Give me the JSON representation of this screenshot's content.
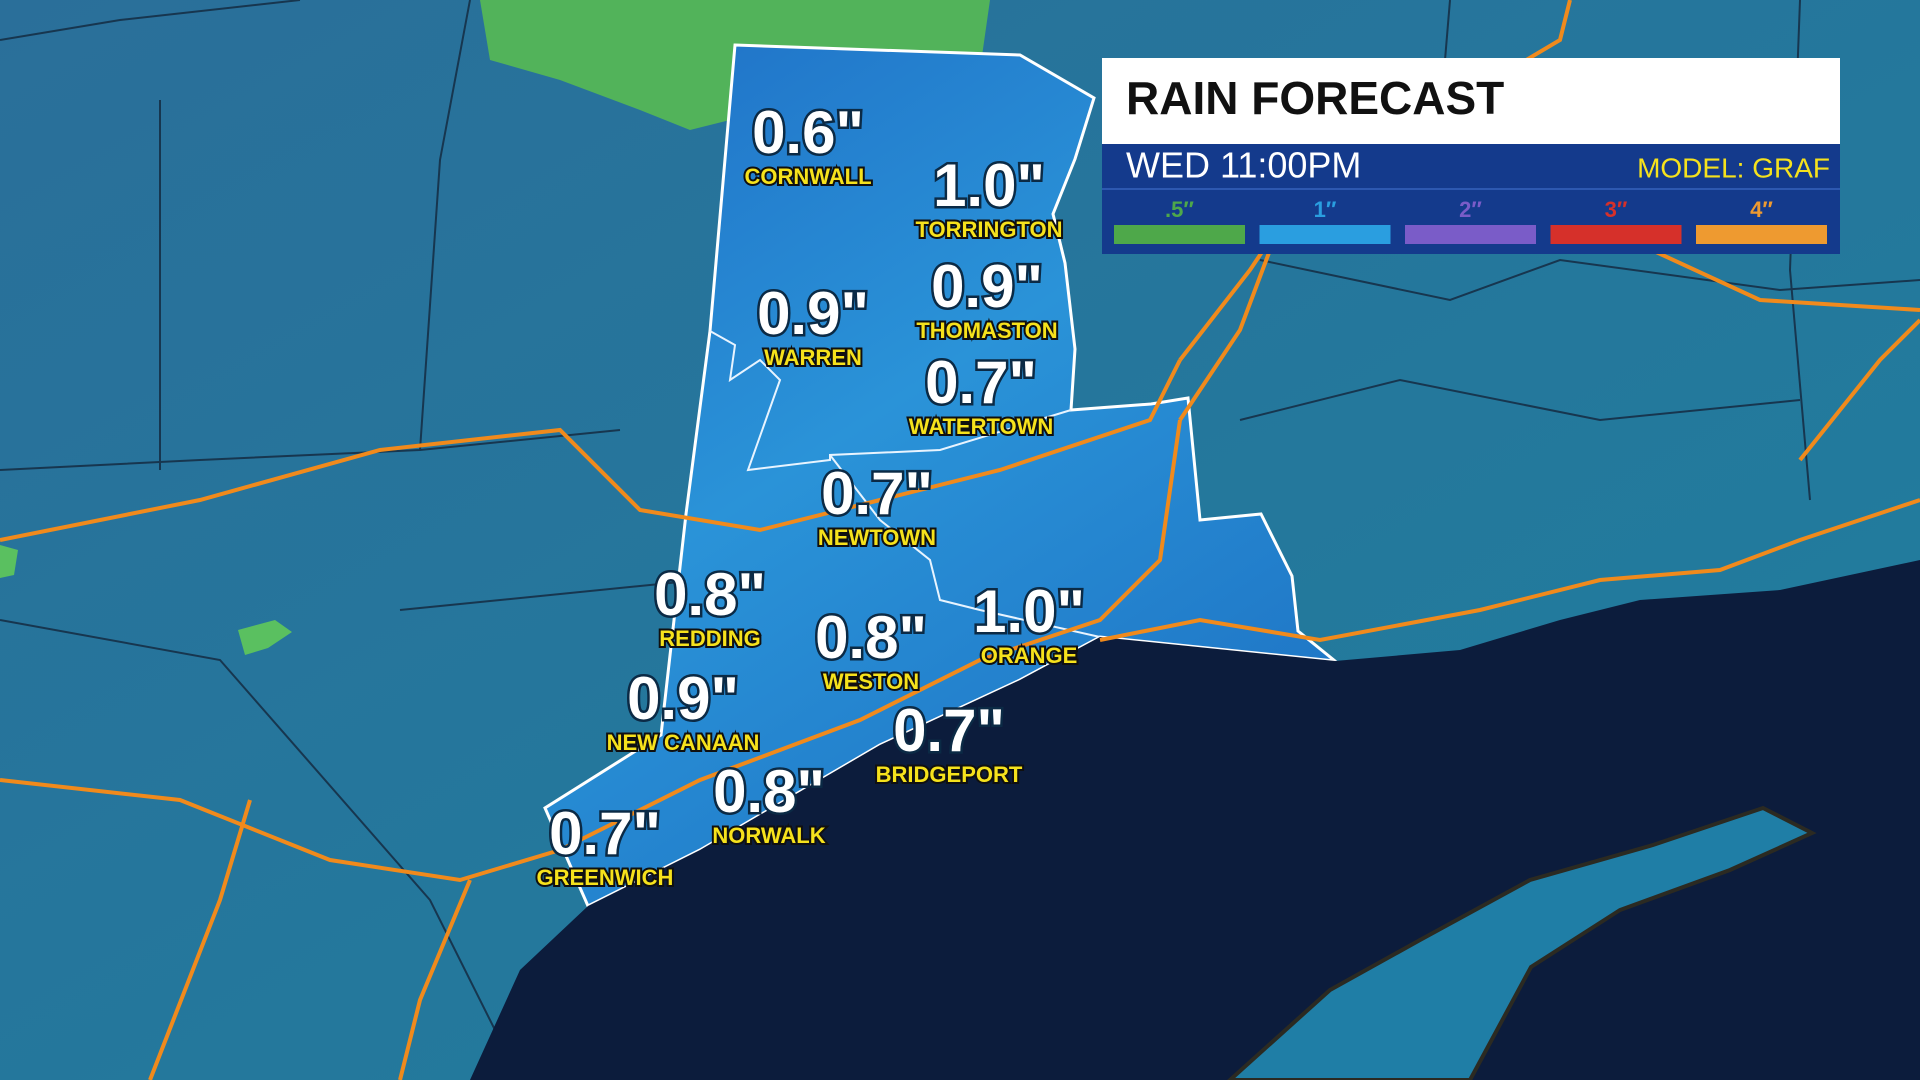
{
  "header": {
    "title": "RAIN FORECAST",
    "time": "WED 11:00PM",
    "model": "MODEL: GRAF"
  },
  "legend": [
    {
      "label": ".5″",
      "color": "#4ea84a"
    },
    {
      "label": "1″",
      "color": "#2a9ee0"
    },
    {
      "label": "2″",
      "color": "#7a5cc8"
    },
    {
      "label": "3″",
      "color": "#d6302a"
    },
    {
      "label": "4″",
      "color": "#ee9a30"
    }
  ],
  "locations": [
    {
      "amount": "0.6\"",
      "name": "CORNWALL"
    },
    {
      "amount": "1.0\"",
      "name": "TORRINGTON"
    },
    {
      "amount": "0.9\"",
      "name": "WARREN"
    },
    {
      "amount": "0.9\"",
      "name": "THOMASTON"
    },
    {
      "amount": "0.7\"",
      "name": "WATERTOWN"
    },
    {
      "amount": "0.7\"",
      "name": "NEWTOWN"
    },
    {
      "amount": "0.8\"",
      "name": "REDDING"
    },
    {
      "amount": "0.8\"",
      "name": "WESTON"
    },
    {
      "amount": "1.0\"",
      "name": "ORANGE"
    },
    {
      "amount": "0.9\"",
      "name": "NEW CANAAN"
    },
    {
      "amount": "0.7\"",
      "name": "BRIDGEPORT"
    },
    {
      "amount": "0.8\"",
      "name": "NORWALK"
    },
    {
      "amount": "0.7\"",
      "name": "GREENWICH"
    }
  ]
}
